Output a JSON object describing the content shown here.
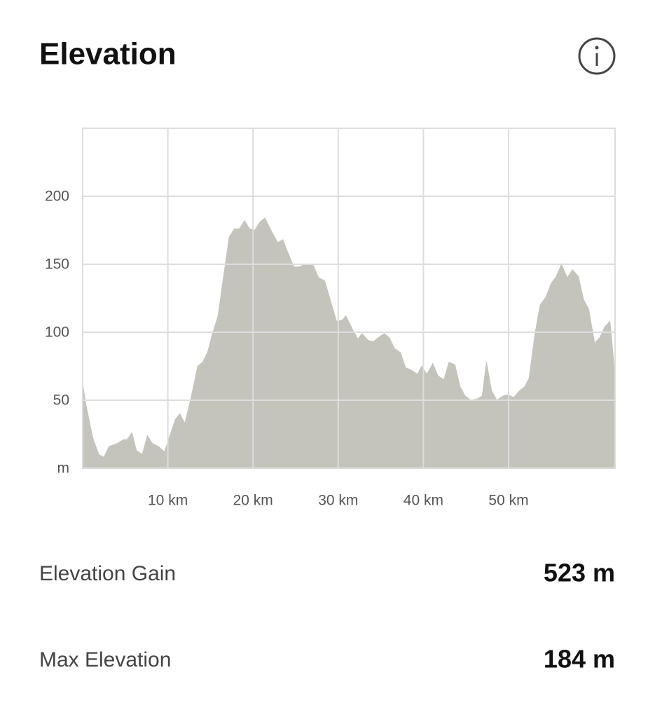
{
  "header": {
    "title": "Elevation"
  },
  "chart_data": {
    "type": "area",
    "color": "#c4c4bd",
    "grid": true,
    "x": [
      0,
      0.4,
      1.2,
      1.9,
      2.5,
      3.1,
      4.0,
      4.8,
      5.2,
      5.8,
      6.3,
      7.0,
      7.6,
      8.2,
      8.9,
      9.6,
      10.3,
      10.9,
      11.4,
      12.0,
      12.7,
      13.5,
      14.1,
      14.7,
      15.2,
      15.9,
      16.5,
      17.2,
      17.8,
      18.4,
      19.0,
      19.6,
      20.2,
      20.8,
      21.4,
      22.1,
      22.9,
      23.5,
      24.0,
      24.8,
      25.4,
      26.1,
      27.1,
      27.7,
      28.4,
      29.1,
      29.8,
      30.5,
      30.9,
      31.6,
      32.3,
      32.8,
      33.5,
      34.1,
      34.7,
      35.4,
      36.0,
      36.6,
      37.3,
      37.9,
      38.6,
      39.3,
      39.8,
      40.4,
      41.1,
      41.7,
      42.4,
      43.0,
      43.7,
      44.3,
      44.9,
      45.6,
      46.3,
      46.9,
      47.4,
      48.0,
      48.6,
      49.3,
      49.9,
      50.6,
      51.3,
      51.9,
      52.4,
      53.1,
      53.7,
      54.4,
      55.0,
      55.6,
      56.2,
      56.9,
      57.5,
      58.2,
      58.8,
      59.4,
      60.1,
      60.7,
      61.3,
      61.9,
      62.5
    ],
    "values": [
      62,
      46,
      22,
      10,
      8,
      16,
      18,
      21,
      21,
      26,
      13,
      10,
      24,
      18,
      16,
      12,
      25,
      36,
      40,
      33,
      51,
      75,
      78,
      86,
      98,
      112,
      139,
      170,
      176,
      176,
      182,
      176,
      175,
      181,
      184,
      175,
      166,
      168,
      160,
      148,
      148,
      150,
      149,
      140,
      138,
      123,
      108,
      109,
      112,
      103,
      95,
      99,
      94,
      93,
      96,
      99,
      96,
      88,
      85,
      74,
      72,
      69,
      75,
      69,
      77,
      68,
      65,
      78,
      76,
      60,
      53,
      50,
      51,
      53,
      78,
      57,
      50,
      53,
      54,
      52,
      57,
      60,
      66,
      99,
      120,
      126,
      136,
      141,
      150,
      140,
      146,
      141,
      124,
      117,
      92,
      96,
      104,
      108,
      68
    ],
    "xlim": [
      0,
      62.5
    ],
    "xticks": [
      {
        "value": 10,
        "label": "10 km"
      },
      {
        "value": 20,
        "label": "20 km"
      },
      {
        "value": 30,
        "label": "30 km"
      },
      {
        "value": 40,
        "label": "40 km"
      },
      {
        "value": 50,
        "label": "50 km"
      }
    ],
    "ylim": [
      0,
      250
    ],
    "yticks": [
      {
        "value": 0,
        "label": "m"
      },
      50,
      100,
      150,
      200
    ]
  },
  "stats": [
    {
      "label": "Elevation Gain",
      "value": "523 m"
    },
    {
      "label": "Max Elevation",
      "value": "184 m"
    }
  ]
}
